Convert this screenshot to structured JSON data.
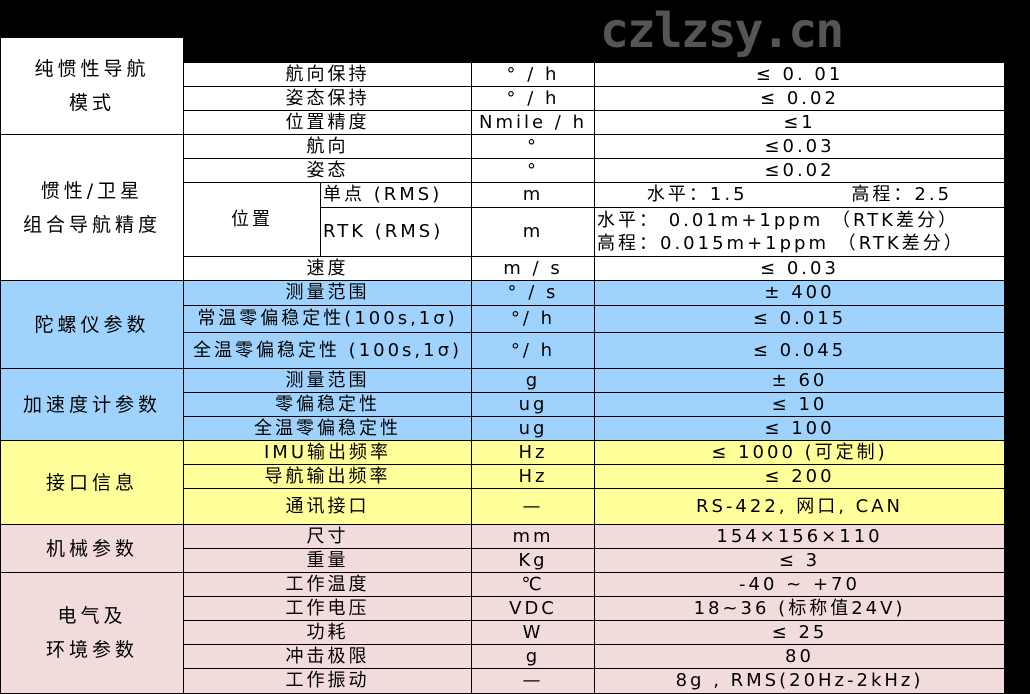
{
  "colors": {
    "white": "#ffffff",
    "blue": "#9fd3fd",
    "yellow": "#ffff99",
    "pink": "#f2dcdb"
  },
  "categories": [
    {
      "label": "纯惯性导航\n模式",
      "color": "white"
    },
    {
      "label": "惯性/卫星\n组合导航精度",
      "color": "white"
    },
    {
      "label": "陀螺仪参数",
      "color": "blue"
    },
    {
      "label": "加速度计参数",
      "color": "blue"
    },
    {
      "label": "接口信息",
      "color": "yellow"
    },
    {
      "label": "机械参数",
      "color": "pink"
    },
    {
      "label": "电气及\n环境参数",
      "color": "pink"
    }
  ],
  "position_label": "位置",
  "rows": [
    {
      "param": "航向保持",
      "unit": "° /  h",
      "value": "≤ 0. 01"
    },
    {
      "param": "姿态保持",
      "unit": "° /  h",
      "value": "≤ 0.02"
    },
    {
      "param": "位置精度",
      "unit": "Nmile /  h",
      "value": "≤1"
    },
    {
      "param": "航向",
      "unit": "°",
      "value": "≤0.03"
    },
    {
      "param": "姿态",
      "unit": "°",
      "value": "≤0.02"
    },
    {
      "param": "单点 (RMS)",
      "unit": "m",
      "value": "水平：1.5",
      "value2": "高程：2.5"
    },
    {
      "param": "RTK (RMS)",
      "unit": "m",
      "value": "水平： 0.01m+1ppm （RTK差分）\n高程：0.015m+1ppm （RTK差分）"
    },
    {
      "param": "速度",
      "unit": "m  /  s",
      "value": "≤ 0.03"
    },
    {
      "param": "测量范围",
      "unit": "° / s",
      "value": "± 400"
    },
    {
      "param": "常温零偏稳定性(100s,1σ)",
      "unit": "°/ h",
      "value": "≤ 0.015"
    },
    {
      "param": "全温零偏稳定性 (100s,1σ)",
      "unit": "°/ h",
      "value": "≤ 0.045"
    },
    {
      "param": "测量范围",
      "unit": "g",
      "value": "± 60"
    },
    {
      "param": "零偏稳定性",
      "unit": "ug",
      "value": "≤ 10"
    },
    {
      "param": "全温零偏稳定性",
      "unit": "ug",
      "value": "≤ 100"
    },
    {
      "param": "IMU输出频率",
      "unit": "Hz",
      "value": "≤ 1000 (可定制)"
    },
    {
      "param": "导航输出频率",
      "unit": "Hz",
      "value": "≤ 200"
    },
    {
      "param": "通讯接口",
      "unit": "—",
      "value": "RS-422, 网口, CAN"
    },
    {
      "param": "尺寸",
      "unit": "mm",
      "value": "154×156×110"
    },
    {
      "param": "重量",
      "unit": "Kg",
      "value": "≤ 3"
    },
    {
      "param": "工作温度",
      "unit": "℃",
      "value": "-40 ~ +70"
    },
    {
      "param": "工作电压",
      "unit": "VDC",
      "value": "18~36 (标称值24V)"
    },
    {
      "param": "功耗",
      "unit": "W",
      "value": "≤ 25"
    },
    {
      "param": "冲击极限",
      "unit": "g",
      "value": "80"
    },
    {
      "param": "工作振动",
      "unit": "—",
      "value": "8g , RMS(20Hz-2kHz)"
    }
  ],
  "watermark": "czlzsy.cn"
}
